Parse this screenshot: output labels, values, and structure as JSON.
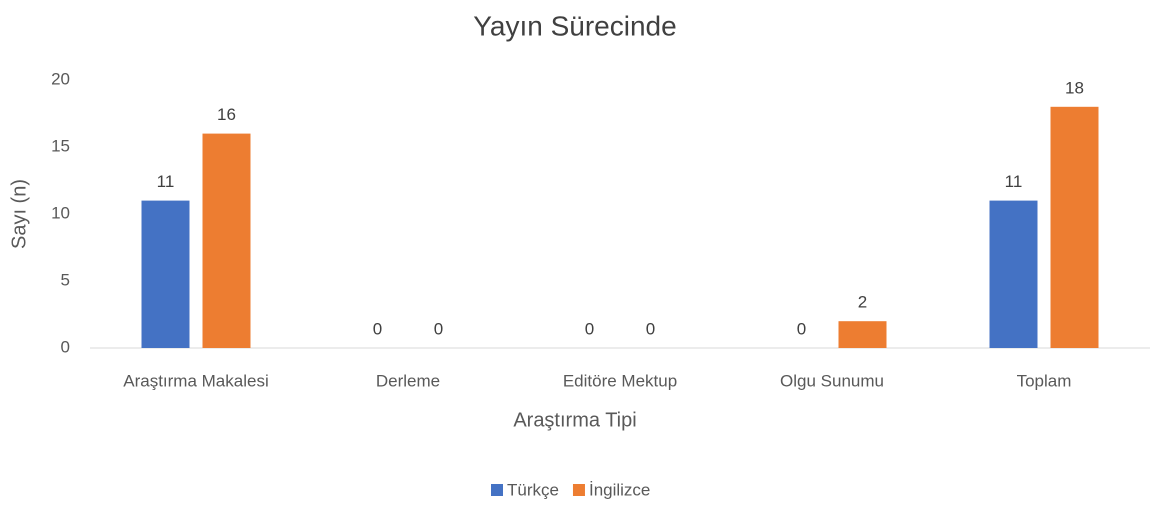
{
  "chart_data": {
    "type": "bar",
    "title": "Yayın Sürecinde",
    "xlabel": "Araştırma Tipi",
    "ylabel": "Sayı (n)",
    "categories": [
      "Araştırma Makalesi",
      "Derleme",
      "Editöre Mektup",
      "Olgu Sunumu",
      "Toplam"
    ],
    "series": [
      {
        "name": "Türkçe",
        "color": "#4472c4",
        "values": [
          11,
          0,
          0,
          0,
          11
        ]
      },
      {
        "name": "İngilizce",
        "color": "#ed7d31",
        "values": [
          16,
          0,
          0,
          2,
          18
        ]
      }
    ],
    "ylim": [
      0,
      20
    ],
    "yticks": [
      0,
      5,
      10,
      15,
      20
    ],
    "grid": false,
    "legend": "bottom"
  }
}
